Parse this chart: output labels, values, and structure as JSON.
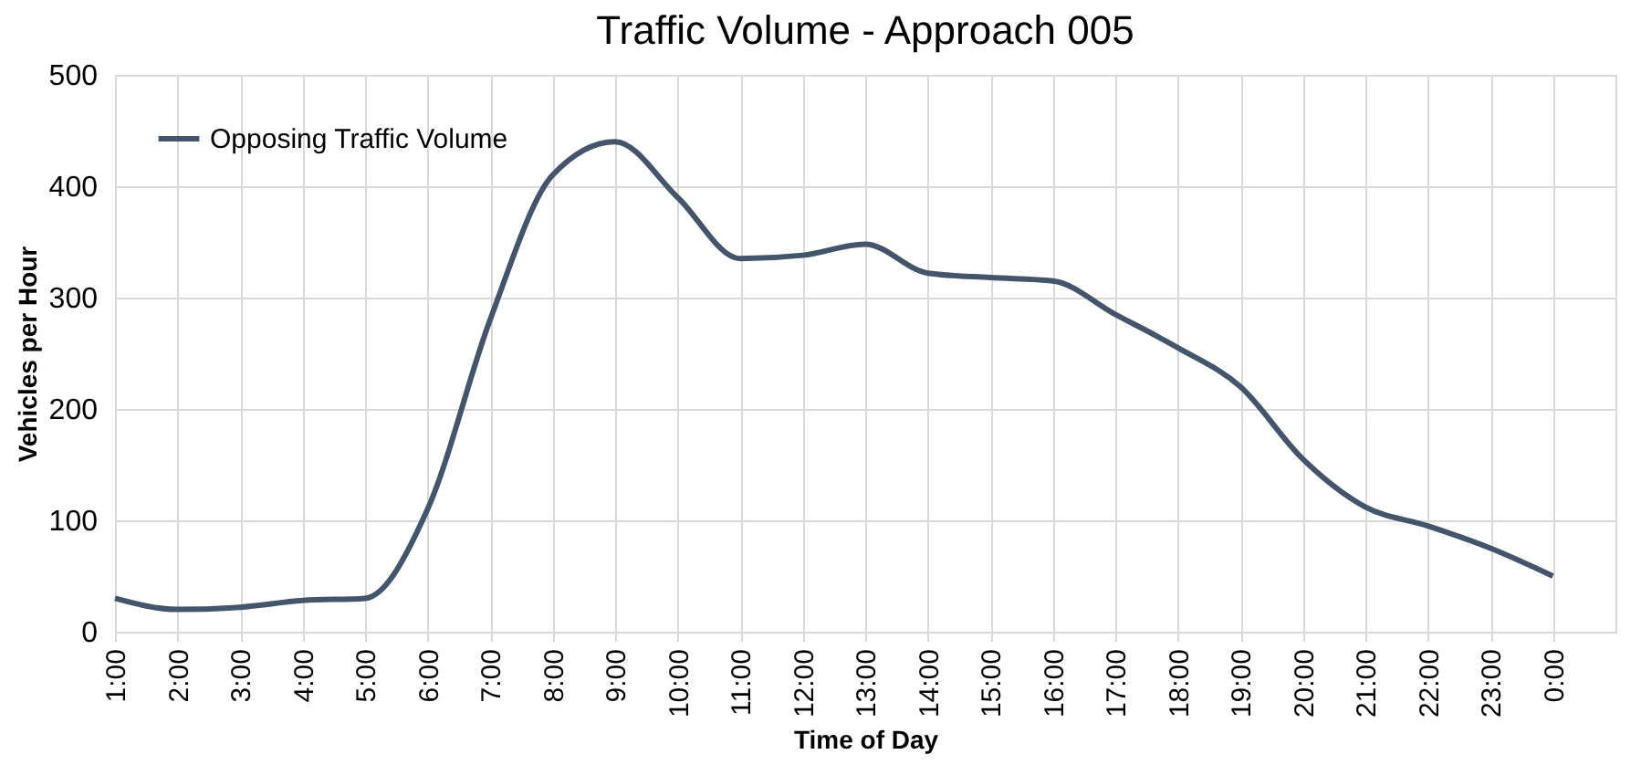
{
  "chart_data": {
    "type": "line",
    "title": "Traffic Volume - Approach 005",
    "xlabel": "Time of Day",
    "ylabel": "Vehicles per Hour",
    "categories": [
      "1:00",
      "2:00",
      "3:00",
      "4:00",
      "5:00",
      "6:00",
      "7:00",
      "8:00",
      "9:00",
      "10:00",
      "11:00",
      "12:00",
      "13:00",
      "14:00",
      "15:00",
      "16:00",
      "17:00",
      "18:00",
      "19:00",
      "20:00",
      "21:00",
      "22:00",
      "23:00",
      "0:00"
    ],
    "series": [
      {
        "name": "Opposing Traffic Volume",
        "color": "#44546a",
        "values": [
          30,
          20,
          22,
          28,
          30,
          110,
          280,
          410,
          440,
          390,
          335,
          338,
          348,
          322,
          318,
          315,
          285,
          255,
          220,
          155,
          112,
          95,
          75,
          50
        ]
      }
    ],
    "ylim": [
      0,
      500
    ],
    "yticks": [
      0,
      100,
      200,
      300,
      400,
      500
    ],
    "grid": true,
    "legend": "top left",
    "marker": "none",
    "line_style": "solid"
  }
}
